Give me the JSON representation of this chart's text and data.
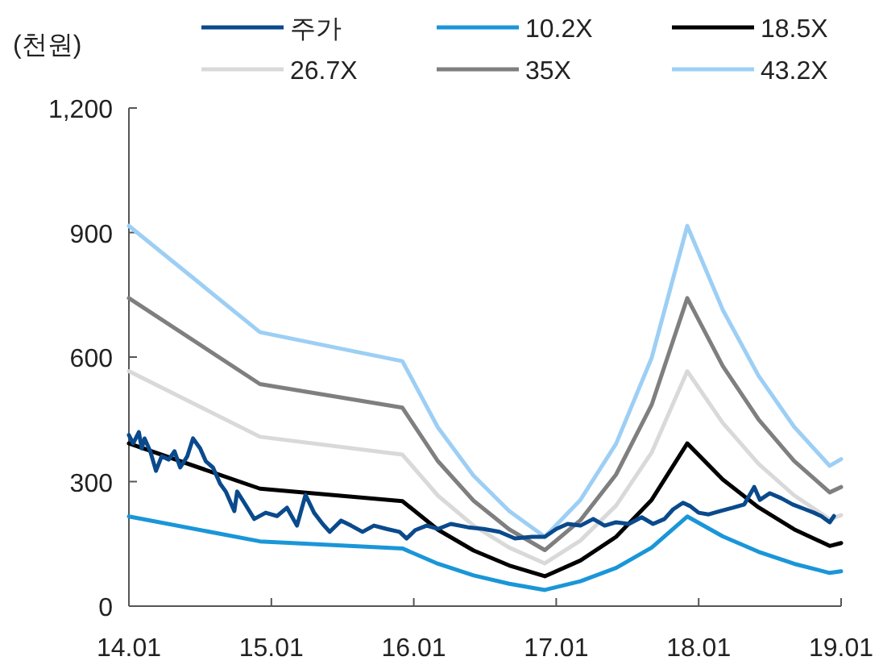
{
  "chart_data": {
    "type": "line",
    "ylabel": "(천원)",
    "legend": "top",
    "line_style": "solid",
    "marker": "none",
    "grid": false,
    "xlim": [
      14.01,
      19.01
    ],
    "xticks": [
      14.01,
      15.01,
      16.01,
      17.01,
      18.01,
      19.01
    ],
    "ylim": [
      0,
      1200
    ],
    "yticks": [
      0,
      300,
      600,
      900,
      {
        "value": 1200,
        "label": "1,200"
      }
    ],
    "series": [
      {
        "name": "주가",
        "color": "#0a4a8c",
        "x": [
          14.01,
          14.04,
          14.08,
          14.1,
          14.12,
          14.16,
          14.2,
          14.24,
          14.29,
          14.33,
          14.37,
          14.42,
          14.46,
          14.51,
          14.55,
          14.6,
          14.65,
          14.69,
          14.75,
          14.77,
          14.82,
          14.89,
          14.97,
          15.05,
          15.12,
          15.19,
          15.25,
          15.31,
          15.37,
          15.42,
          15.5,
          15.57,
          15.65,
          15.73,
          15.82,
          15.91,
          15.96,
          16.02,
          16.1,
          16.18,
          16.27,
          16.39,
          16.5,
          16.61,
          16.72,
          16.84,
          16.93,
          17.01,
          17.09,
          17.18,
          17.27,
          17.35,
          17.43,
          17.52,
          17.61,
          17.69,
          17.77,
          17.83,
          17.9,
          17.95,
          18.01,
          18.08,
          18.16,
          18.25,
          18.33,
          18.4,
          18.44,
          18.51,
          18.59,
          18.67,
          18.76,
          18.82,
          18.87,
          18.93,
          18.96
        ],
        "values": [
          412,
          392,
          419,
          380,
          404,
          373,
          326,
          361,
          353,
          373,
          334,
          361,
          404,
          380,
          349,
          334,
          295,
          276,
          229,
          276,
          249,
          210,
          225,
          217,
          237,
          194,
          268,
          225,
          198,
          179,
          206,
          194,
          179,
          194,
          186,
          179,
          163,
          183,
          194,
          186,
          198,
          190,
          186,
          179,
          163,
          167,
          167,
          186,
          198,
          194,
          210,
          194,
          202,
          198,
          214,
          198,
          210,
          233,
          249,
          241,
          225,
          221,
          229,
          237,
          245,
          287,
          256,
          272,
          260,
          245,
          233,
          225,
          217,
          202,
          217
        ]
      },
      {
        "name": "10.2X",
        "color": "#1a96d8",
        "x": [
          14.01,
          14.93,
          15.93,
          16.18,
          16.43,
          16.68,
          16.93,
          17.18,
          17.43,
          17.68,
          17.93,
          18.18,
          18.43,
          18.68,
          18.93,
          19.01
        ],
        "values": [
          216,
          156,
          139,
          102,
          74,
          54,
          39,
          60,
          92,
          141,
          216,
          168,
          131,
          102,
          80,
          84
        ]
      },
      {
        "name": "18.5X",
        "color": "#000000",
        "x": [
          14.01,
          14.93,
          15.93,
          16.18,
          16.43,
          16.68,
          16.93,
          17.18,
          17.43,
          17.68,
          17.93,
          18.18,
          18.43,
          18.68,
          18.93,
          19.01
        ],
        "values": [
          392,
          283,
          253,
          184,
          134,
          98,
          72,
          110,
          167,
          256,
          392,
          305,
          238,
          185,
          145,
          152
        ]
      },
      {
        "name": "26.7X",
        "color": "#d9d9d9",
        "x": [
          14.01,
          14.93,
          15.93,
          16.18,
          16.43,
          16.68,
          16.93,
          17.18,
          17.43,
          17.68,
          17.93,
          18.18,
          18.43,
          18.68,
          18.93,
          19.01
        ],
        "values": [
          566,
          408,
          365,
          266,
          194,
          141,
          103,
          158,
          242,
          370,
          566,
          441,
          343,
          267,
          209,
          219
        ]
      },
      {
        "name": "35X",
        "color": "#7f7f7f",
        "x": [
          14.01,
          14.93,
          15.93,
          16.18,
          16.43,
          16.68,
          16.93,
          17.18,
          17.43,
          17.68,
          17.93,
          18.18,
          18.43,
          18.68,
          18.93,
          19.01
        ],
        "values": [
          742,
          535,
          478,
          349,
          254,
          185,
          135,
          207,
          317,
          485,
          742,
          578,
          450,
          350,
          274,
          287
        ]
      },
      {
        "name": "43.2X",
        "color": "#9dcff5",
        "x": [
          14.01,
          14.93,
          15.93,
          16.18,
          16.43,
          16.68,
          16.93,
          17.18,
          17.43,
          17.68,
          17.93,
          18.18,
          18.43,
          18.68,
          18.93,
          19.01
        ],
        "values": [
          916,
          660,
          590,
          430,
          314,
          229,
          167,
          256,
          391,
          598,
          916,
          713,
          555,
          432,
          338,
          354
        ]
      }
    ]
  }
}
